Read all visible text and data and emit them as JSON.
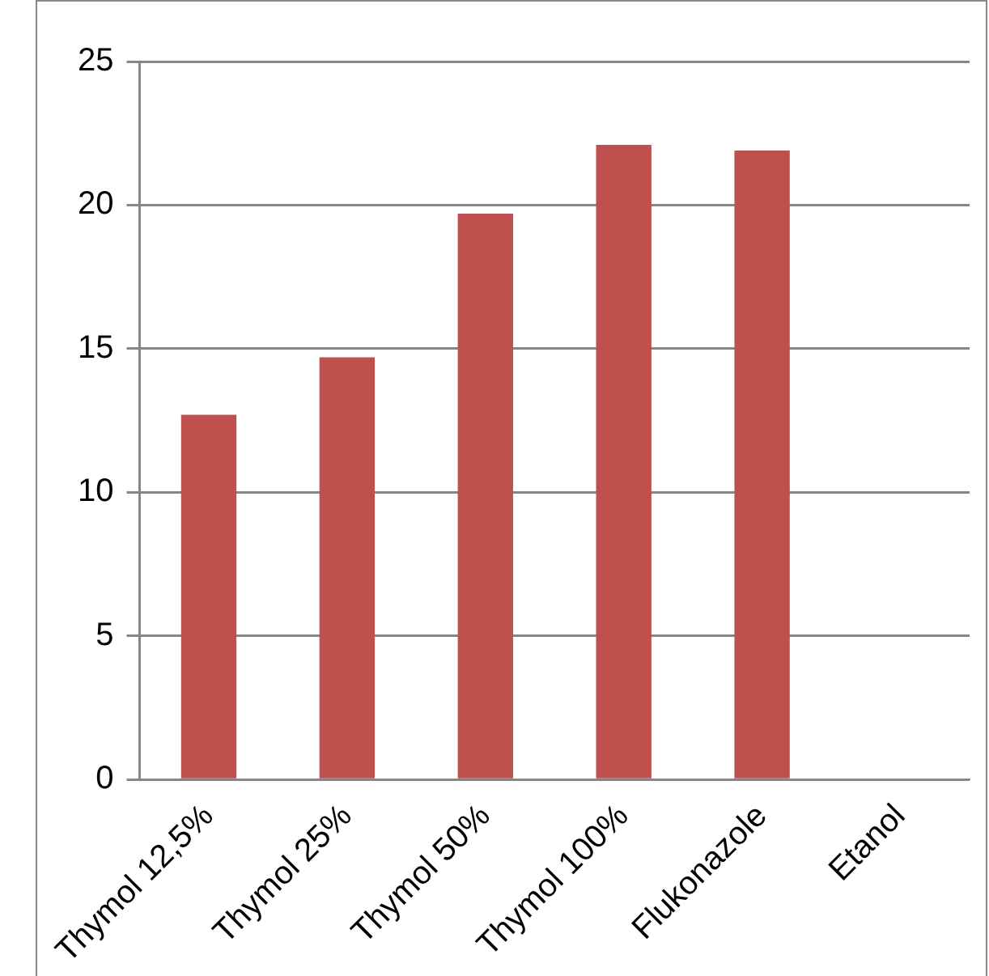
{
  "chart_data": {
    "type": "bar",
    "categories": [
      "Thymol 12,5%",
      "Thymol 25%",
      "Thymol 50%",
      "Thymol 100%",
      "Flukonazole",
      "Etanol"
    ],
    "values": [
      12.7,
      14.7,
      19.7,
      22.1,
      21.9,
      0
    ],
    "color": "#c0504d",
    "ylim": [
      0,
      25
    ],
    "yticks": [
      0,
      5,
      10,
      15,
      20,
      25
    ],
    "grid": "y",
    "legend": false
  }
}
